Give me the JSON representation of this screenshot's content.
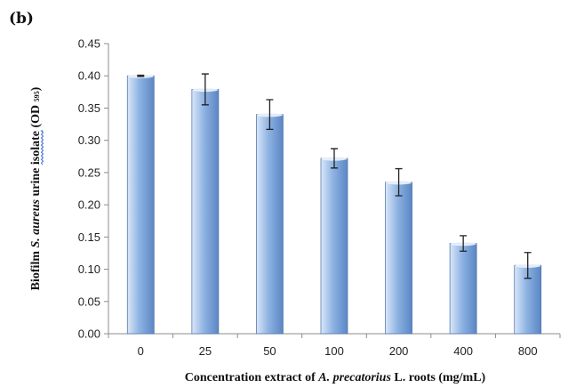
{
  "panel_label": "(b)",
  "chart_data": {
    "type": "bar",
    "categories": [
      "0",
      "25",
      "50",
      "100",
      "200",
      "400",
      "800"
    ],
    "values": [
      0.4,
      0.379,
      0.34,
      0.272,
      0.235,
      0.14,
      0.106
    ],
    "errors": [
      0.001,
      0.024,
      0.023,
      0.015,
      0.021,
      0.012,
      0.02
    ],
    "xlabel": {
      "prefix": "Concentration extract of ",
      "italic": "A. precatorius",
      "suffix": " L. roots (mg/mL)"
    },
    "ylabel": {
      "prefix": "Biofilm ",
      "italic": "S. aureus",
      "middle": " urine ",
      "underlined": "isolate",
      "suffix": " (OD ",
      "subscript": "595",
      "close": ")"
    },
    "ylim": [
      0,
      0.45
    ],
    "yticks": [
      "0.00",
      "0.05",
      "0.10",
      "0.15",
      "0.20",
      "0.25",
      "0.30",
      "0.35",
      "0.40",
      "0.45"
    ],
    "grid": false,
    "legend": "none",
    "colors": {
      "bar_top": "#dbe7f7",
      "bar_mid": "#8eb3e3",
      "bar_bottom": "#5b86c4",
      "bar_edge": "#5579b0"
    }
  }
}
